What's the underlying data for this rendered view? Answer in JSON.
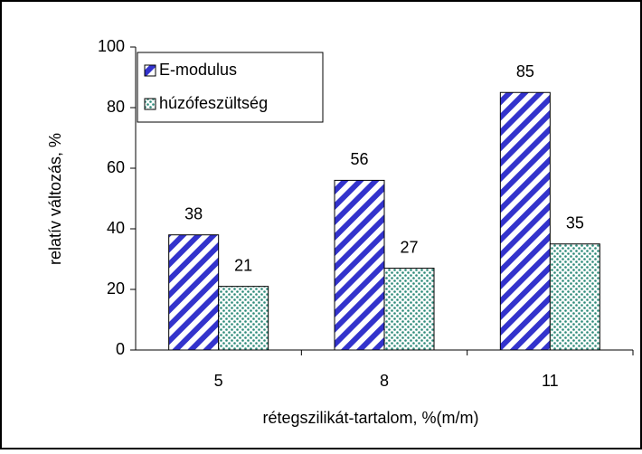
{
  "chart_data": {
    "type": "bar",
    "x_label": "rétegszilikát-tartalom, %(m/m)",
    "y_label": "relatív változás, %",
    "categories": [
      "5",
      "8",
      "11"
    ],
    "series": [
      {
        "name": "E-modulus",
        "color": "#3333cc",
        "values": [
          38,
          56,
          85
        ]
      },
      {
        "name": "húzófeszültség",
        "color": "#2e8b7a",
        "values": [
          21,
          27,
          35
        ]
      }
    ],
    "ylim": [
      0,
      100
    ],
    "yticks": [
      0,
      20,
      40,
      60,
      80,
      100
    ],
    "legend": "upper-left"
  }
}
